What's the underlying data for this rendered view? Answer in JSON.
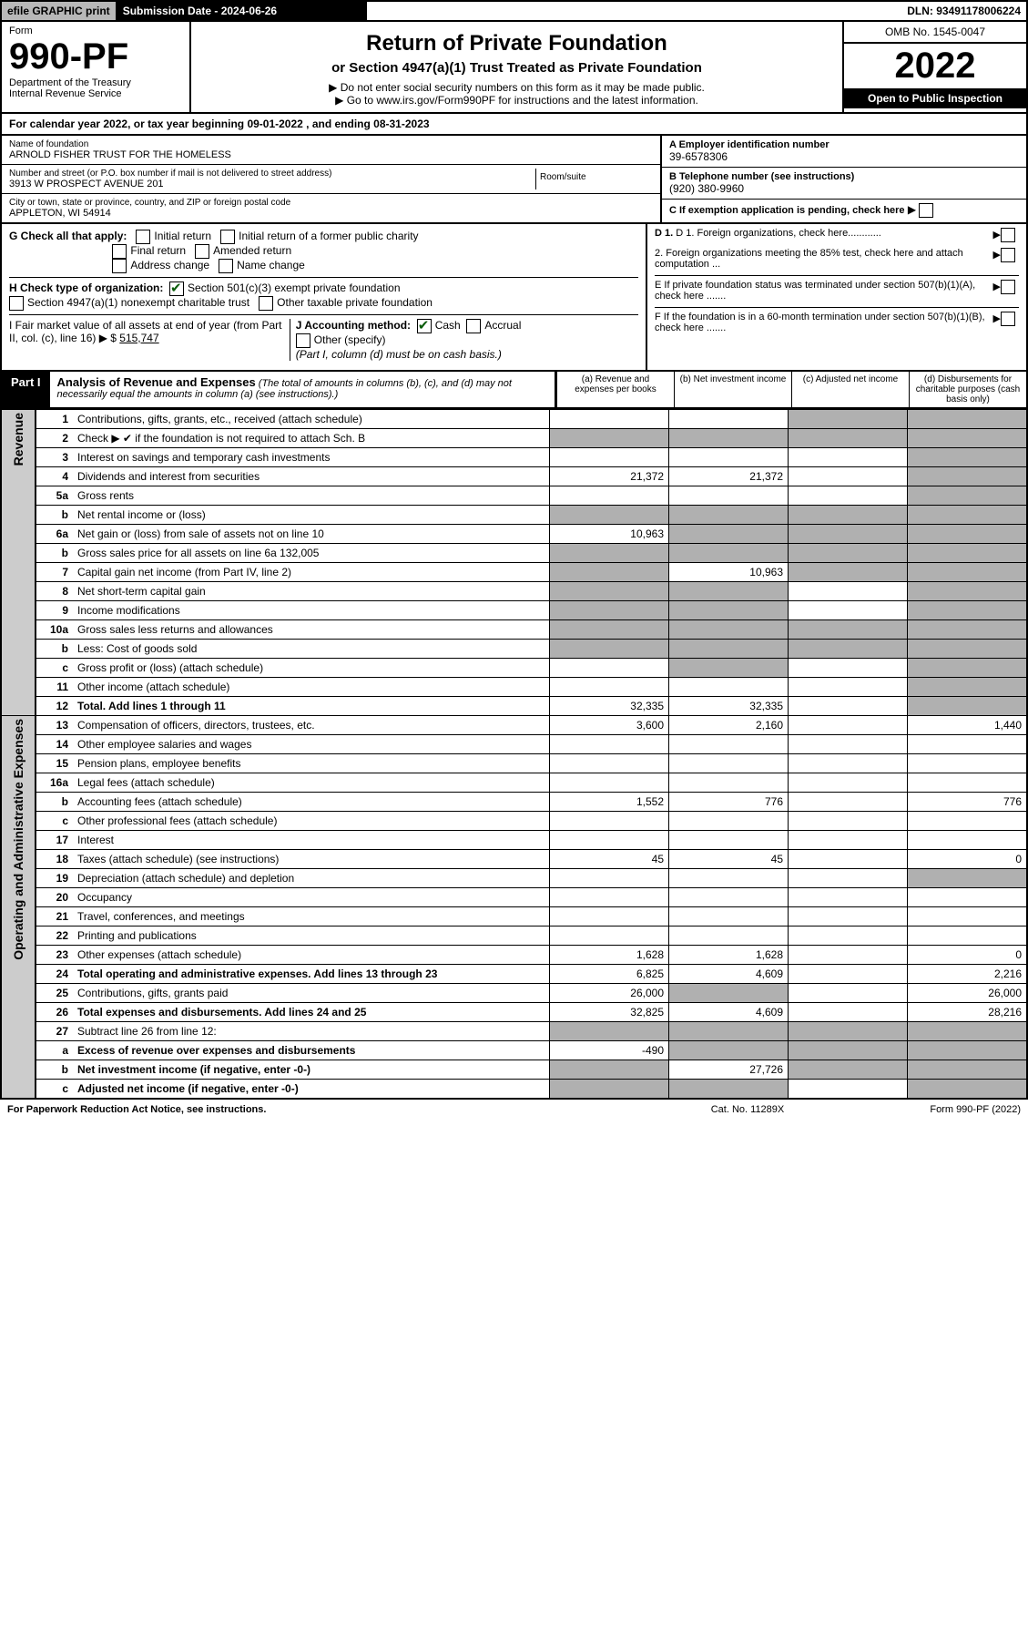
{
  "topbar": {
    "efile": "efile GRAPHIC print",
    "subdate_label": "Submission Date - 2024-06-26",
    "dln": "DLN: 93491178006224"
  },
  "header": {
    "form_label": "Form",
    "form_number": "990-PF",
    "dept": "Department of the Treasury",
    "irs": "Internal Revenue Service",
    "title": "Return of Private Foundation",
    "subtitle": "or Section 4947(a)(1) Trust Treated as Private Foundation",
    "inst1": "▶ Do not enter social security numbers on this form as it may be made public.",
    "inst2": "▶ Go to www.irs.gov/Form990PF for instructions and the latest information.",
    "omb": "OMB No. 1545-0047",
    "year": "2022",
    "open_pub": "Open to Public Inspection"
  },
  "calendar": "For calendar year 2022, or tax year beginning 09-01-2022          , and ending 08-31-2023",
  "entity": {
    "name_lbl": "Name of foundation",
    "name": "ARNOLD FISHER TRUST FOR THE HOMELESS",
    "addr_lbl": "Number and street (or P.O. box number if mail is not delivered to street address)",
    "addr": "3913 W PROSPECT AVENUE 201",
    "room_lbl": "Room/suite",
    "city_lbl": "City or town, state or province, country, and ZIP or foreign postal code",
    "city": "APPLETON, WI  54914",
    "ein_lbl": "A Employer identification number",
    "ein": "39-6578306",
    "tel_lbl": "B Telephone number (see instructions)",
    "tel": "(920) 380-9960",
    "c_lbl": "C If exemption application is pending, check here"
  },
  "sectionG": {
    "label": "G Check all that apply:",
    "opts": {
      "initial": "Initial return",
      "initial_former": "Initial return of a former public charity",
      "final": "Final return",
      "amended": "Amended return",
      "addr_change": "Address change",
      "name_change": "Name change"
    }
  },
  "sectionH": {
    "label": "H Check type of organization:",
    "c3": "Section 501(c)(3) exempt private foundation",
    "4947": "Section 4947(a)(1) nonexempt charitable trust",
    "other": "Other taxable private foundation"
  },
  "sectionI": {
    "label": "I Fair market value of all assets at end of year (from Part II, col. (c), line 16) ▶ $",
    "value": "515,747"
  },
  "sectionJ": {
    "label": "J Accounting method:",
    "cash": "Cash",
    "accrual": "Accrual",
    "other": "Other (specify)",
    "note": "(Part I, column (d) must be on cash basis.)"
  },
  "sectionD": {
    "d1": "D 1. Foreign organizations, check here............",
    "d2": "2. Foreign organizations meeting the 85% test, check here and attach computation ..."
  },
  "sectionE": "E  If private foundation status was terminated under section 507(b)(1)(A), check here .......",
  "sectionF": "F  If the foundation is in a 60-month termination under section 507(b)(1)(B), check here .......",
  "part1": {
    "tag": "Part I",
    "title": "Analysis of Revenue and Expenses",
    "note": "(The total of amounts in columns (b), (c), and (d) may not necessarily equal the amounts in column (a) (see instructions).)",
    "cols": {
      "a": "(a) Revenue and expenses per books",
      "b": "(b) Net investment income",
      "c": "(c) Adjusted net income",
      "d": "(d) Disbursements for charitable purposes (cash basis only)"
    }
  },
  "side_labels": {
    "revenue": "Revenue",
    "expenses": "Operating and Administrative Expenses"
  },
  "rows": [
    {
      "n": "1",
      "d": "Contributions, gifts, grants, etc., received (attach schedule)",
      "a": "",
      "b": "",
      "c": "",
      "dd": "",
      "sh": [
        false,
        false,
        true,
        true
      ]
    },
    {
      "n": "2",
      "d": "Check ▶ ✔ if the foundation is not required to attach Sch. B",
      "a": "",
      "b": "",
      "c": "",
      "dd": "",
      "sh": [
        true,
        true,
        true,
        true
      ],
      "checkmark": true
    },
    {
      "n": "3",
      "d": "Interest on savings and temporary cash investments",
      "a": "",
      "b": "",
      "c": "",
      "dd": "",
      "sh": [
        false,
        false,
        false,
        true
      ]
    },
    {
      "n": "4",
      "d": "Dividends and interest from securities",
      "a": "21,372",
      "b": "21,372",
      "c": "",
      "dd": "",
      "sh": [
        false,
        false,
        false,
        true
      ]
    },
    {
      "n": "5a",
      "d": "Gross rents",
      "a": "",
      "b": "",
      "c": "",
      "dd": "",
      "sh": [
        false,
        false,
        false,
        true
      ]
    },
    {
      "n": "b",
      "d": "Net rental income or (loss)",
      "a": "",
      "b": "",
      "c": "",
      "dd": "",
      "sh": [
        true,
        true,
        true,
        true
      ]
    },
    {
      "n": "6a",
      "d": "Net gain or (loss) from sale of assets not on line 10",
      "a": "10,963",
      "b": "",
      "c": "",
      "dd": "",
      "sh": [
        false,
        true,
        true,
        true
      ]
    },
    {
      "n": "b",
      "d": "Gross sales price for all assets on line 6a          132,005",
      "a": "",
      "b": "",
      "c": "",
      "dd": "",
      "sh": [
        true,
        true,
        true,
        true
      ]
    },
    {
      "n": "7",
      "d": "Capital gain net income (from Part IV, line 2)",
      "a": "",
      "b": "10,963",
      "c": "",
      "dd": "",
      "sh": [
        true,
        false,
        true,
        true
      ]
    },
    {
      "n": "8",
      "d": "Net short-term capital gain",
      "a": "",
      "b": "",
      "c": "",
      "dd": "",
      "sh": [
        true,
        true,
        false,
        true
      ]
    },
    {
      "n": "9",
      "d": "Income modifications",
      "a": "",
      "b": "",
      "c": "",
      "dd": "",
      "sh": [
        true,
        true,
        false,
        true
      ]
    },
    {
      "n": "10a",
      "d": "Gross sales less returns and allowances",
      "a": "",
      "b": "",
      "c": "",
      "dd": "",
      "sh": [
        true,
        true,
        true,
        true
      ]
    },
    {
      "n": "b",
      "d": "Less: Cost of goods sold",
      "a": "",
      "b": "",
      "c": "",
      "dd": "",
      "sh": [
        true,
        true,
        true,
        true
      ]
    },
    {
      "n": "c",
      "d": "Gross profit or (loss) (attach schedule)",
      "a": "",
      "b": "",
      "c": "",
      "dd": "",
      "sh": [
        false,
        true,
        false,
        true
      ]
    },
    {
      "n": "11",
      "d": "Other income (attach schedule)",
      "a": "",
      "b": "",
      "c": "",
      "dd": "",
      "sh": [
        false,
        false,
        false,
        true
      ]
    },
    {
      "n": "12",
      "d": "Total. Add lines 1 through 11",
      "a": "32,335",
      "b": "32,335",
      "c": "",
      "dd": "",
      "sh": [
        false,
        false,
        false,
        true
      ],
      "bold": true
    },
    {
      "n": "13",
      "d": "Compensation of officers, directors, trustees, etc.",
      "a": "3,600",
      "b": "2,160",
      "c": "",
      "dd": "1,440",
      "sh": [
        false,
        false,
        false,
        false
      ]
    },
    {
      "n": "14",
      "d": "Other employee salaries and wages",
      "a": "",
      "b": "",
      "c": "",
      "dd": "",
      "sh": [
        false,
        false,
        false,
        false
      ]
    },
    {
      "n": "15",
      "d": "Pension plans, employee benefits",
      "a": "",
      "b": "",
      "c": "",
      "dd": "",
      "sh": [
        false,
        false,
        false,
        false
      ]
    },
    {
      "n": "16a",
      "d": "Legal fees (attach schedule)",
      "a": "",
      "b": "",
      "c": "",
      "dd": "",
      "sh": [
        false,
        false,
        false,
        false
      ]
    },
    {
      "n": "b",
      "d": "Accounting fees (attach schedule)",
      "a": "1,552",
      "b": "776",
      "c": "",
      "dd": "776",
      "sh": [
        false,
        false,
        false,
        false
      ]
    },
    {
      "n": "c",
      "d": "Other professional fees (attach schedule)",
      "a": "",
      "b": "",
      "c": "",
      "dd": "",
      "sh": [
        false,
        false,
        false,
        false
      ]
    },
    {
      "n": "17",
      "d": "Interest",
      "a": "",
      "b": "",
      "c": "",
      "dd": "",
      "sh": [
        false,
        false,
        false,
        false
      ]
    },
    {
      "n": "18",
      "d": "Taxes (attach schedule) (see instructions)",
      "a": "45",
      "b": "45",
      "c": "",
      "dd": "0",
      "sh": [
        false,
        false,
        false,
        false
      ]
    },
    {
      "n": "19",
      "d": "Depreciation (attach schedule) and depletion",
      "a": "",
      "b": "",
      "c": "",
      "dd": "",
      "sh": [
        false,
        false,
        false,
        true
      ]
    },
    {
      "n": "20",
      "d": "Occupancy",
      "a": "",
      "b": "",
      "c": "",
      "dd": "",
      "sh": [
        false,
        false,
        false,
        false
      ]
    },
    {
      "n": "21",
      "d": "Travel, conferences, and meetings",
      "a": "",
      "b": "",
      "c": "",
      "dd": "",
      "sh": [
        false,
        false,
        false,
        false
      ]
    },
    {
      "n": "22",
      "d": "Printing and publications",
      "a": "",
      "b": "",
      "c": "",
      "dd": "",
      "sh": [
        false,
        false,
        false,
        false
      ]
    },
    {
      "n": "23",
      "d": "Other expenses (attach schedule)",
      "a": "1,628",
      "b": "1,628",
      "c": "",
      "dd": "0",
      "sh": [
        false,
        false,
        false,
        false
      ]
    },
    {
      "n": "24",
      "d": "Total operating and administrative expenses. Add lines 13 through 23",
      "a": "6,825",
      "b": "4,609",
      "c": "",
      "dd": "2,216",
      "sh": [
        false,
        false,
        false,
        false
      ],
      "bold": true
    },
    {
      "n": "25",
      "d": "Contributions, gifts, grants paid",
      "a": "26,000",
      "b": "",
      "c": "",
      "dd": "26,000",
      "sh": [
        false,
        true,
        false,
        false
      ]
    },
    {
      "n": "26",
      "d": "Total expenses and disbursements. Add lines 24 and 25",
      "a": "32,825",
      "b": "4,609",
      "c": "",
      "dd": "28,216",
      "sh": [
        false,
        false,
        false,
        false
      ],
      "bold": true
    },
    {
      "n": "27",
      "d": "Subtract line 26 from line 12:",
      "a": "",
      "b": "",
      "c": "",
      "dd": "",
      "sh": [
        true,
        true,
        true,
        true
      ]
    },
    {
      "n": "a",
      "d": "Excess of revenue over expenses and disbursements",
      "a": "-490",
      "b": "",
      "c": "",
      "dd": "",
      "sh": [
        false,
        true,
        true,
        true
      ],
      "bold": true
    },
    {
      "n": "b",
      "d": "Net investment income (if negative, enter -0-)",
      "a": "",
      "b": "27,726",
      "c": "",
      "dd": "",
      "sh": [
        true,
        false,
        true,
        true
      ],
      "bold": true
    },
    {
      "n": "c",
      "d": "Adjusted net income (if negative, enter -0-)",
      "a": "",
      "b": "",
      "c": "",
      "dd": "",
      "sh": [
        true,
        true,
        false,
        true
      ],
      "bold": true
    }
  ],
  "footer": {
    "left": "For Paperwork Reduction Act Notice, see instructions.",
    "mid": "Cat. No. 11289X",
    "right": "Form 990-PF (2022)"
  }
}
